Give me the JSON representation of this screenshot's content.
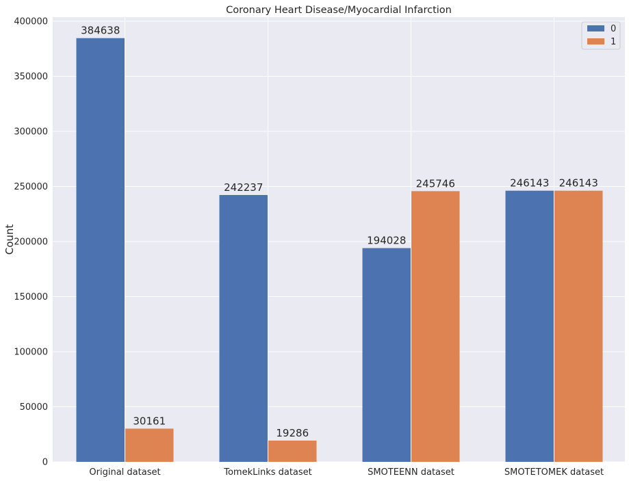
{
  "chart_data": {
    "type": "bar",
    "title": "Coronary Heart Disease/Myocardial Infarction",
    "xlabel": "",
    "ylabel": "Count",
    "categories": [
      "Original dataset",
      "TomekLinks dataset",
      "SMOTEENN dataset",
      "SMOTETOMEK dataset"
    ],
    "series": [
      {
        "name": "0",
        "color": "#4c72b0",
        "values": [
          384638,
          242237,
          194028,
          246143
        ]
      },
      {
        "name": "1",
        "color": "#dd8452",
        "values": [
          30161,
          19286,
          245746,
          246143
        ]
      }
    ],
    "ylim": [
      0,
      400000
    ],
    "yticks": [
      "0",
      "50000",
      "100000",
      "150000",
      "200000",
      "250000",
      "300000",
      "350000",
      "400000"
    ],
    "ytick_values": [
      0,
      50000,
      100000,
      150000,
      200000,
      250000,
      300000,
      350000,
      400000
    ],
    "grid": true,
    "legend_position": "top-right",
    "background_color": "#eaeaf2"
  }
}
